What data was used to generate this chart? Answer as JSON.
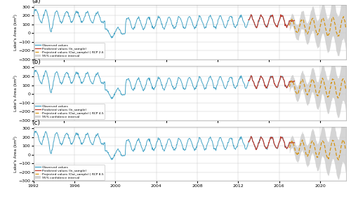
{
  "panels": [
    "(a)",
    "(b)",
    "(c)"
  ],
  "rcp_labels": [
    "RCP 2.6",
    "RCP 4.5",
    "RCP 8.5"
  ],
  "xlim": [
    1992,
    2022.5
  ],
  "ylim": [
    -300,
    320
  ],
  "yticks": [
    -300,
    -200,
    -100,
    0,
    100,
    200,
    300
  ],
  "xticks": [
    1992,
    1996,
    2000,
    2004,
    2008,
    2012,
    2016,
    2020
  ],
  "ylabel": "Lake's Area (km²)",
  "obs_color": "#3A9EC2",
  "pred_color": "#C0392B",
  "proj_color": "#D4900A",
  "ci_color": "#C8C8C8",
  "obs_start": 1992.0,
  "obs_end": 2017.0,
  "pred_start": 2013.0,
  "pred_end": 2017.5,
  "proj_start": 2017.0,
  "proj_end": 2022.5,
  "n_per_year": 24
}
